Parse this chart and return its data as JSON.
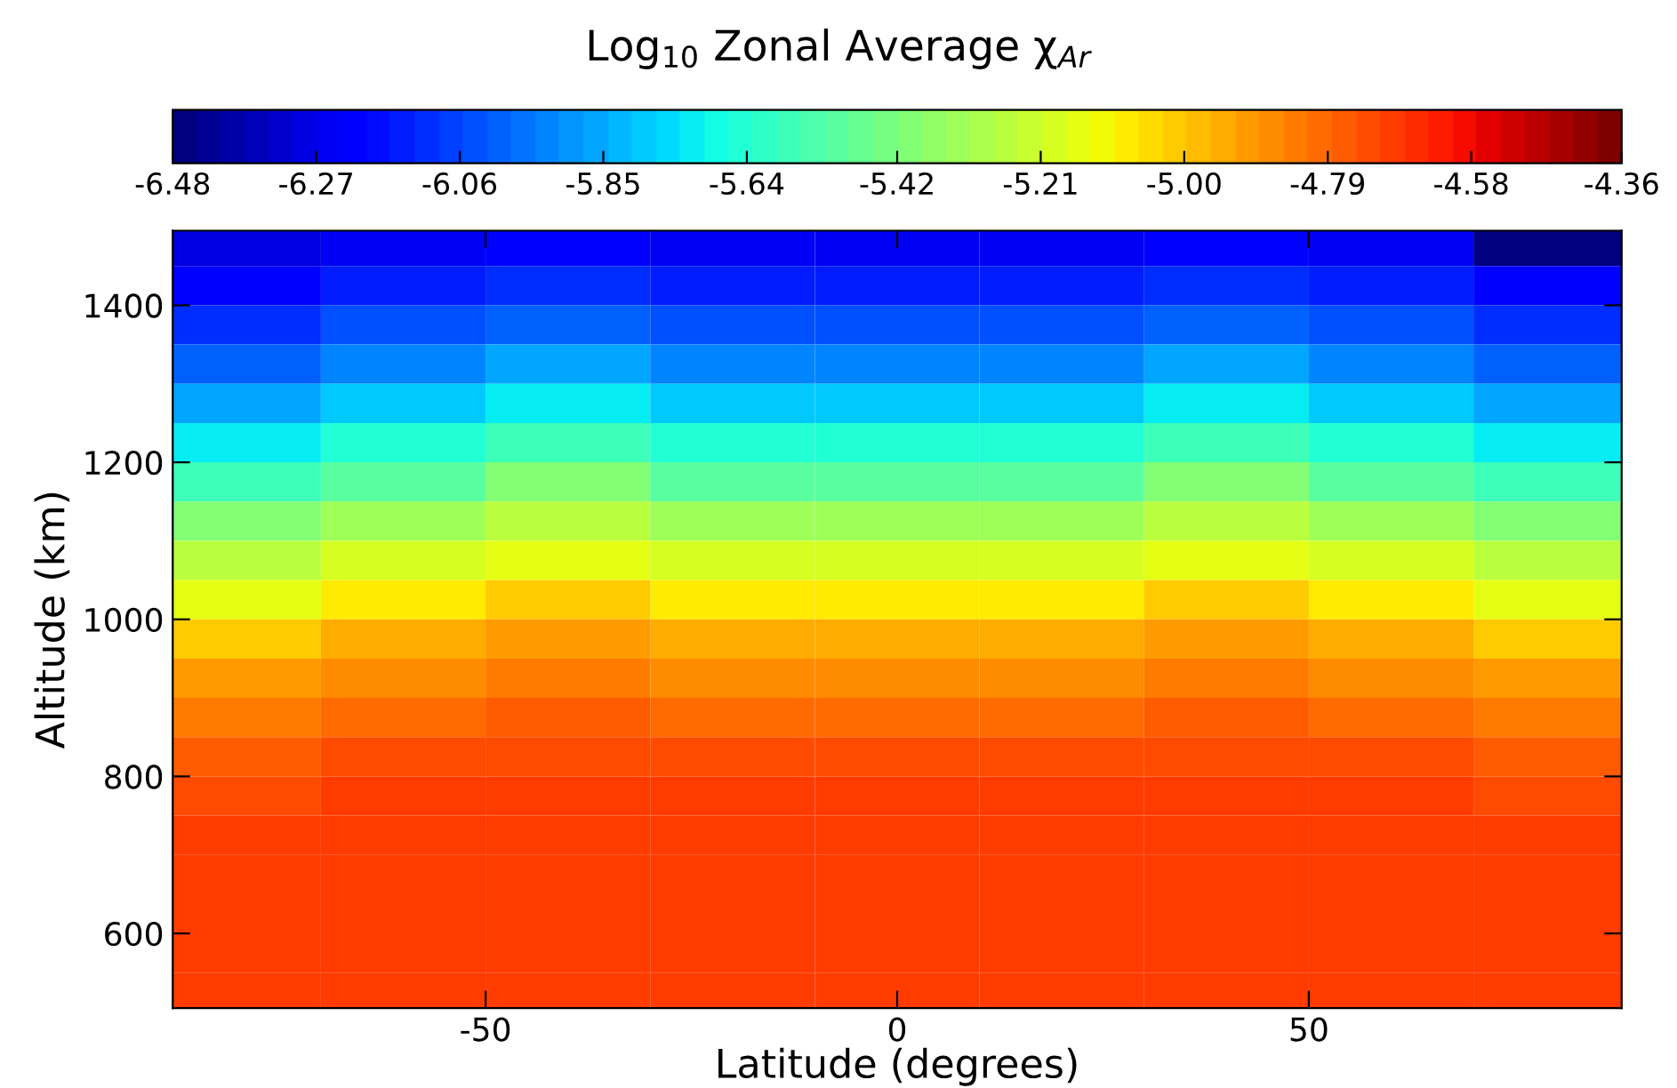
{
  "chart_data": {
    "type": "heatmap",
    "title": "Log$_{10}$ Zonal Average χ$_{Ar}$",
    "xlabel": "Latitude (degrees)",
    "ylabel": "Altitude (km)",
    "x": [
      -80,
      -60,
      -40,
      -20,
      0,
      20,
      40,
      60,
      80
    ],
    "y": [
      1475,
      1425,
      1375,
      1325,
      1275,
      1225,
      1175,
      1125,
      1075,
      1025,
      975,
      925,
      875,
      825,
      775,
      725,
      675,
      625,
      575,
      525
    ],
    "xlim": [
      -88,
      88
    ],
    "xticks": [
      -50,
      0,
      50
    ],
    "ylim": [
      505,
      1495
    ],
    "yticks": [
      600,
      800,
      1000,
      1200,
      1400
    ],
    "clim": [
      -6.48,
      -4.36
    ],
    "cticks": [
      -6.48,
      -6.27,
      -6.06,
      -5.85,
      -5.64,
      -5.42,
      -5.21,
      {
        "value": -5.0,
        "label": "-5.00"
      },
      -4.79,
      -4.58,
      -4.36
    ],
    "cells": [
      [
        -6.29,
        -6.25,
        -6.2,
        -6.25,
        -6.25,
        -6.25,
        -6.2,
        -6.25,
        -6.45
      ],
      [
        -6.2,
        -6.15,
        -6.1,
        -6.15,
        -6.15,
        -6.15,
        -6.1,
        -6.15,
        -6.2
      ],
      [
        -6.1,
        -6.05,
        -5.99,
        -6.05,
        -6.05,
        -6.05,
        -5.99,
        -6.05,
        -6.1
      ],
      [
        -5.99,
        -5.92,
        -5.85,
        -5.92,
        -5.92,
        -5.92,
        -5.85,
        -5.92,
        -5.99
      ],
      [
        -5.85,
        -5.78,
        -5.71,
        -5.78,
        -5.78,
        -5.78,
        -5.71,
        -5.78,
        -5.85
      ],
      [
        -5.71,
        -5.64,
        -5.57,
        -5.64,
        -5.64,
        -5.64,
        -5.57,
        -5.64,
        -5.71
      ],
      [
        -5.57,
        -5.5,
        -5.42,
        -5.5,
        -5.5,
        -5.5,
        -5.42,
        -5.5,
        -5.57
      ],
      [
        -5.42,
        -5.34,
        -5.27,
        -5.34,
        -5.34,
        -5.34,
        -5.27,
        -5.34,
        -5.42
      ],
      [
        -5.27,
        -5.2,
        -5.14,
        -5.2,
        -5.2,
        -5.2,
        -5.14,
        -5.2,
        -5.27
      ],
      [
        -5.14,
        -5.08,
        -5.02,
        -5.08,
        -5.08,
        -5.08,
        -5.02,
        -5.08,
        -5.14
      ],
      [
        -5.02,
        -4.96,
        -4.91,
        -4.96,
        -4.96,
        -4.96,
        -4.91,
        -4.96,
        -5.02
      ],
      [
        -4.91,
        -4.86,
        -4.83,
        -4.86,
        -4.86,
        -4.86,
        -4.83,
        -4.86,
        -4.91
      ],
      [
        -4.83,
        -4.79,
        -4.76,
        -4.79,
        -4.79,
        -4.79,
        -4.76,
        -4.79,
        -4.83
      ],
      [
        -4.76,
        -4.74,
        -4.72,
        -4.74,
        -4.74,
        -4.74,
        -4.72,
        -4.74,
        -4.76
      ],
      [
        -4.72,
        -4.7,
        -4.68,
        -4.7,
        -4.7,
        -4.7,
        -4.68,
        -4.7,
        -4.72
      ],
      [
        -4.68,
        -4.68,
        -4.68,
        -4.68,
        -4.68,
        -4.68,
        -4.68,
        -4.68,
        -4.68
      ],
      [
        -4.68,
        -4.68,
        -4.68,
        -4.68,
        -4.68,
        -4.68,
        -4.68,
        -4.68,
        -4.68
      ],
      [
        -4.68,
        -4.68,
        -4.68,
        -4.68,
        -4.68,
        -4.68,
        -4.68,
        -4.68,
        -4.68
      ],
      [
        -4.68,
        -4.68,
        -4.68,
        -4.68,
        -4.68,
        -4.68,
        -4.68,
        -4.68,
        -4.68
      ],
      [
        -4.68,
        -4.68,
        -4.68,
        -4.68,
        -4.68,
        -4.68,
        -4.68,
        -4.68,
        -4.68
      ]
    ]
  }
}
